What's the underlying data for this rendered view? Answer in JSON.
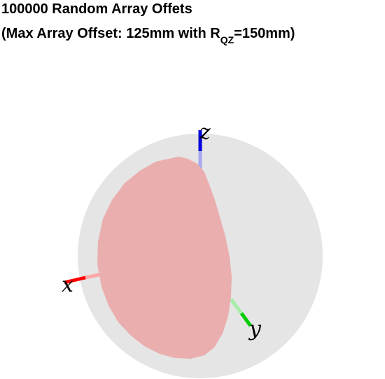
{
  "title": {
    "line1": "100000 Random Array Offets",
    "line2_prefix": "(Max Array Offset: 125mm with R",
    "line2_subscript": "QZ",
    "line2_suffix": "=150mm)"
  },
  "chart_data": {
    "type": "scatter",
    "projection": "3d",
    "title": "100000 Random Array Offets (Max Array Offset: 125mm with R_QZ=150mm)",
    "n_points": 100000,
    "max_array_offset_mm": 125,
    "R_QZ_mm": 150,
    "axis_labels": {
      "x": "x",
      "y": "y",
      "z": "z"
    },
    "colors": {
      "sphere": "#e5e5e5",
      "points": "#eaaeae",
      "x_axis": "#ff0000",
      "y_axis": "#00cc00",
      "z_axis": "#0000dd"
    }
  }
}
